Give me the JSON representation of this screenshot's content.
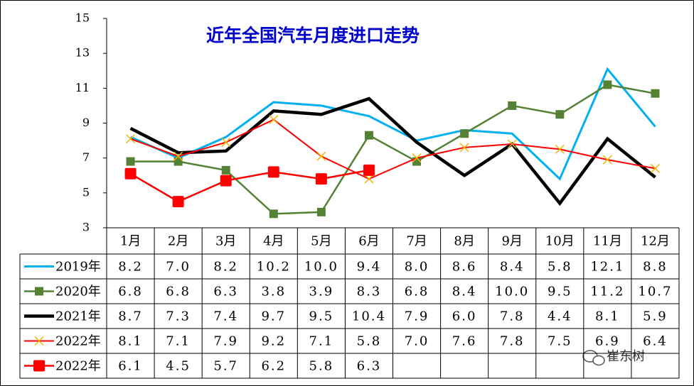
{
  "chart_data": {
    "type": "line",
    "title": "近年全国汽车月度进口走势",
    "categories": [
      "1月",
      "2月",
      "3月",
      "4月",
      "5月",
      "6月",
      "7月",
      "8月",
      "9月",
      "10月",
      "11月",
      "12月"
    ],
    "ylim": [
      3,
      15
    ],
    "yticks": [
      3,
      5,
      7,
      9,
      11,
      13,
      15
    ],
    "series": [
      {
        "name": "2019年",
        "color": "#00b0f0",
        "marker": "none",
        "values": [
          8.2,
          7.0,
          8.2,
          10.2,
          10.0,
          9.4,
          8.0,
          8.6,
          8.4,
          5.8,
          12.1,
          8.8
        ],
        "value_labels": [
          "8.2",
          "7.0",
          "8.2",
          "10.2",
          "10.0",
          "9.4",
          "8.0",
          "8.6",
          "8.4",
          "5.8",
          "12.1",
          "8.8"
        ]
      },
      {
        "name": "2020年",
        "color": "#548235",
        "marker": "square",
        "values": [
          6.8,
          6.8,
          6.3,
          3.8,
          3.9,
          8.3,
          6.8,
          8.4,
          10.0,
          9.5,
          11.2,
          10.7
        ],
        "value_labels": [
          "6.8",
          "6.8",
          "6.3",
          "3.8",
          "3.9",
          "8.3",
          "6.8",
          "8.4",
          "10.0",
          "9.5",
          "11.2",
          "10.7"
        ]
      },
      {
        "name": "2021年",
        "color": "#000000",
        "marker": "none",
        "values": [
          8.7,
          7.3,
          7.4,
          9.7,
          9.5,
          10.4,
          7.9,
          6.0,
          7.8,
          4.4,
          8.1,
          5.9
        ],
        "value_labels": [
          "8.7",
          "7.3",
          "7.4",
          "9.7",
          "9.5",
          "10.4",
          "7.9",
          "6.0",
          "7.8",
          "4.4",
          "8.1",
          "5.9"
        ]
      },
      {
        "name": "2022年",
        "color": "#ff0000",
        "marker": "x",
        "values": [
          8.1,
          7.1,
          7.9,
          9.2,
          7.1,
          5.8,
          7.0,
          7.6,
          7.8,
          7.5,
          6.9,
          6.4
        ],
        "value_labels": [
          "8.1",
          "7.1",
          "7.9",
          "9.2",
          "7.1",
          "5.8",
          "7.0",
          "7.6",
          "7.8",
          "7.5",
          "6.9",
          "6.4"
        ]
      },
      {
        "name": "2022年",
        "color": "#ff0000",
        "marker": "bigsquare",
        "values": [
          6.1,
          4.5,
          5.7,
          6.2,
          5.8,
          6.3,
          null,
          null,
          null,
          null,
          null,
          null
        ],
        "value_labels": [
          "6.1",
          "4.5",
          "5.7",
          "6.2",
          "5.8",
          "6.3",
          null,
          null,
          null,
          null,
          null,
          null
        ]
      }
    ],
    "watermark": "崔东树"
  }
}
